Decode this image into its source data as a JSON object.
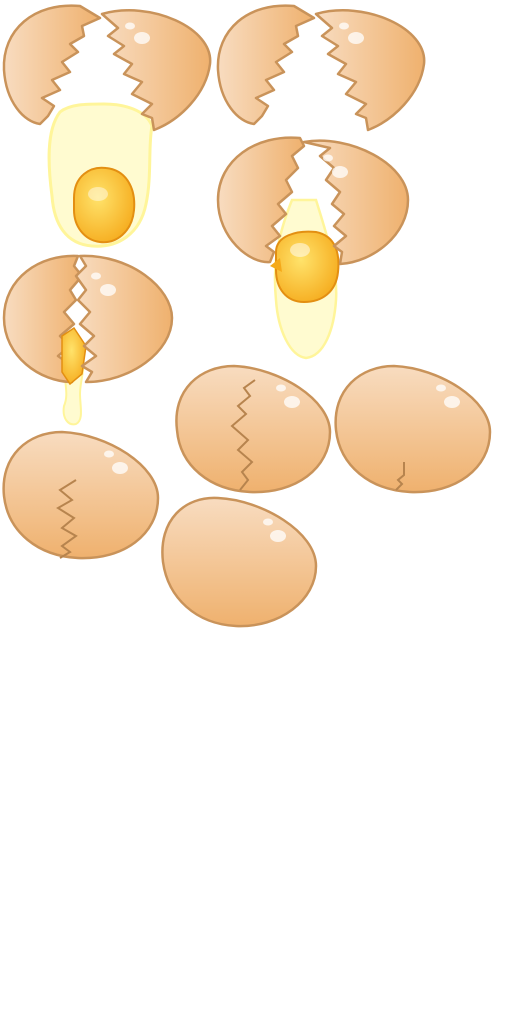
{
  "sprite_sheet": {
    "frames": [
      {
        "name": "egg-whole",
        "cracks": 0
      },
      {
        "name": "egg-crack-small",
        "cracks": 1
      },
      {
        "name": "egg-crack-medium",
        "cracks": 2
      },
      {
        "name": "egg-crack-large",
        "cracks": 3
      },
      {
        "name": "egg-split-start",
        "cracks": 4
      },
      {
        "name": "egg-split-dripping",
        "cracks": 5
      },
      {
        "name": "egg-split-open",
        "cracks": 6
      },
      {
        "name": "egg-split-empty",
        "cracks": 7
      }
    ],
    "colors": {
      "shell_light": "#f8dcc0",
      "shell_dark": "#efb16e",
      "outline": "#c9935a",
      "crack": "#b7844e",
      "highlight": "#ffffff",
      "yolk_light": "#ffe36b",
      "yolk_dark": "#f5a91a",
      "yolk_outline": "#e38f12",
      "white_fill": "#fffbd0",
      "white_outline": "#fff59a"
    }
  }
}
